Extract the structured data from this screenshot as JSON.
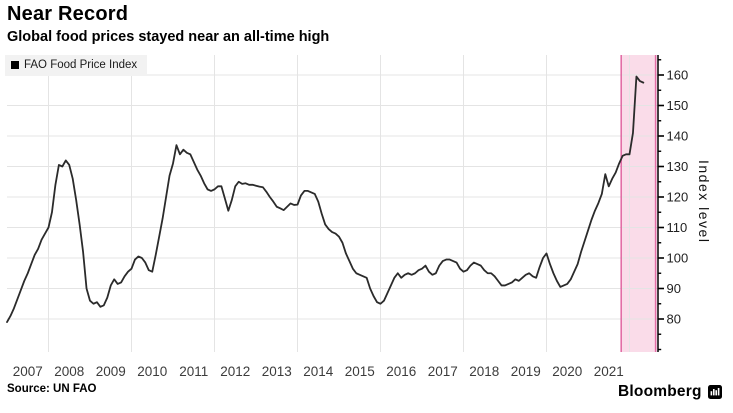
{
  "header": {
    "title": "Near Record",
    "subtitle": "Global food prices stayed near an all-time high"
  },
  "legend": {
    "label": "FAO Food Price Index",
    "swatch": "black-square"
  },
  "footer": {
    "source": "Source: UN FAO",
    "brand": "Bloomberg",
    "brand_icon": "bloomberg-bars-icon"
  },
  "colors": {
    "line": "#2b2b2b",
    "band_fill": "#fadce9",
    "band_edge": "#e26ea6",
    "grid": "#e4e4e4",
    "axis": "#000000",
    "ytick_label": "#1f1f1f",
    "xtick_label": "#3c3c3c",
    "legend_bg": "#f2f2f2"
  },
  "chart_data": {
    "type": "line",
    "title": "Near Record",
    "subtitle": "Global food prices stayed near an all-time high",
    "ylabel": "Index level",
    "legend_position": "top-left",
    "grid": true,
    "ylim": [
      69,
      167
    ],
    "xlim_years": [
      2007,
      2022.7
    ],
    "yticks_major": [
      80,
      90,
      100,
      110,
      120,
      130,
      140,
      150,
      160
    ],
    "yticks_minor": [
      70,
      75,
      85,
      95,
      105,
      115,
      125,
      135,
      145,
      155,
      165
    ],
    "x_year_labels": [
      2007,
      2008,
      2009,
      2010,
      2011,
      2012,
      2013,
      2014,
      2015,
      2016,
      2017,
      2018,
      2019,
      2020,
      2021
    ],
    "grid_vertical_years": [
      2008,
      2010,
      2012,
      2014,
      2016,
      2018,
      2020,
      2022
    ],
    "highlight_band": {
      "start_year": 2021.8,
      "end_year": 2022.63
    },
    "series": [
      {
        "name": "FAO Food Price Index",
        "frequency": "monthly",
        "start_year": 2007,
        "start_month": 1,
        "values": [
          79,
          81,
          83.5,
          86.5,
          89.5,
          92.5,
          95,
          98,
          101,
          103,
          106,
          108,
          110,
          115,
          124,
          130.5,
          130,
          132,
          130.5,
          126,
          119,
          111,
          102,
          90,
          86,
          85,
          85.5,
          84,
          84.5,
          87,
          91,
          93,
          91.5,
          92,
          94,
          95.5,
          96.5,
          99.5,
          100.5,
          100,
          98.5,
          96,
          95.5,
          101,
          107,
          113,
          120,
          127,
          131,
          137,
          134,
          135.5,
          134.5,
          134,
          131.5,
          129,
          127,
          124.5,
          122.5,
          122,
          122.5,
          123.5,
          123.5,
          119.5,
          115.5,
          119,
          123.5,
          125,
          124.3,
          124.5,
          124,
          124,
          123.7,
          123.4,
          123.2,
          121.7,
          120,
          118.5,
          116.8,
          116.3,
          115.7,
          116.8,
          117.9,
          117.4,
          117.5,
          120.5,
          122,
          122,
          121.5,
          121,
          118.5,
          114.5,
          111,
          109.5,
          108.5,
          108,
          107,
          105,
          101.5,
          99,
          96.5,
          95,
          94.5,
          94,
          93.5,
          90,
          87.5,
          85.5,
          85,
          86,
          88.5,
          91,
          93.5,
          95,
          93.5,
          94.5,
          95,
          94.5,
          95,
          96,
          96.5,
          97.5,
          95.5,
          94.5,
          95,
          97.5,
          99,
          99.5,
          99.5,
          99,
          98.5,
          96.5,
          95.5,
          96,
          97.5,
          98.5,
          98,
          97.5,
          96,
          95,
          95,
          94,
          92.5,
          91,
          91,
          91.5,
          92,
          93,
          92.5,
          93.5,
          94.5,
          95,
          94,
          93.5,
          97,
          100,
          101.5,
          98,
          95,
          92.5,
          90.5,
          91,
          91.5,
          93,
          95.5,
          98,
          102,
          105.5,
          109,
          112.5,
          115.5,
          118,
          121,
          127.5,
          123.5,
          126,
          128,
          131,
          133.5,
          134,
          134,
          141,
          159.5,
          158,
          157.5
        ]
      }
    ]
  }
}
